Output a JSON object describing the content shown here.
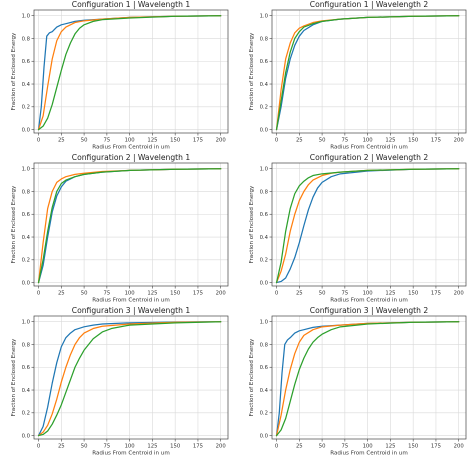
{
  "colors": {
    "blue": "#1f77b4",
    "orange": "#ff7f0e",
    "green": "#2ca02c",
    "grid": "#d9d9d9"
  },
  "chart_data": [
    {
      "type": "line",
      "title": "Configuration 1 | Wavelength 1",
      "xlabel": "Radius From Centroid in um",
      "ylabel": "Fraction of Enclosed Energy",
      "xlim": [
        -5,
        208
      ],
      "ylim": [
        -0.03,
        1.05
      ],
      "xticks": [
        0,
        25,
        50,
        75,
        100,
        125,
        150,
        175,
        200
      ],
      "yticks": [
        0.0,
        0.2,
        0.4,
        0.6,
        0.8,
        1.0
      ],
      "grid": true,
      "series": [
        {
          "color": "#1f77b4",
          "x": [
            0,
            3,
            6,
            9,
            12,
            15,
            20,
            25,
            30,
            40,
            50,
            70,
            100,
            150,
            200
          ],
          "y": [
            0.0,
            0.2,
            0.55,
            0.82,
            0.85,
            0.86,
            0.9,
            0.92,
            0.93,
            0.95,
            0.96,
            0.97,
            0.985,
            0.995,
            1.0
          ]
        },
        {
          "color": "#ff7f0e",
          "x": [
            0,
            5,
            10,
            15,
            20,
            25,
            30,
            40,
            50,
            70,
            100,
            150,
            200
          ],
          "y": [
            0.0,
            0.12,
            0.38,
            0.62,
            0.78,
            0.86,
            0.9,
            0.94,
            0.955,
            0.97,
            0.985,
            0.995,
            1.0
          ]
        },
        {
          "color": "#2ca02c",
          "x": [
            0,
            5,
            10,
            15,
            20,
            25,
            30,
            35,
            40,
            45,
            50,
            60,
            70,
            100,
            150,
            200
          ],
          "y": [
            0.0,
            0.03,
            0.1,
            0.22,
            0.37,
            0.52,
            0.66,
            0.76,
            0.84,
            0.89,
            0.92,
            0.95,
            0.965,
            0.98,
            0.995,
            1.0
          ]
        }
      ]
    },
    {
      "type": "line",
      "title": "Configuration 1 | Wavelength 2",
      "xlabel": "Radius From Centroid in um",
      "ylabel": "Fraction of Enclosed Energy",
      "xlim": [
        -5,
        208
      ],
      "ylim": [
        -0.03,
        1.05
      ],
      "xticks": [
        0,
        25,
        50,
        75,
        100,
        125,
        150,
        175,
        200
      ],
      "yticks": [
        0.0,
        0.2,
        0.4,
        0.6,
        0.8,
        1.0
      ],
      "grid": true,
      "series": [
        {
          "color": "#1f77b4",
          "x": [
            0,
            5,
            10,
            15,
            20,
            25,
            30,
            40,
            50,
            70,
            100,
            150,
            200
          ],
          "y": [
            0.0,
            0.2,
            0.45,
            0.62,
            0.74,
            0.82,
            0.87,
            0.92,
            0.95,
            0.97,
            0.985,
            0.995,
            1.0
          ]
        },
        {
          "color": "#ff7f0e",
          "x": [
            0,
            5,
            10,
            15,
            20,
            25,
            30,
            40,
            50,
            70,
            100,
            150,
            200
          ],
          "y": [
            0.0,
            0.35,
            0.62,
            0.76,
            0.85,
            0.89,
            0.91,
            0.94,
            0.955,
            0.97,
            0.985,
            0.995,
            1.0
          ]
        },
        {
          "color": "#2ca02c",
          "x": [
            0,
            5,
            10,
            15,
            20,
            25,
            30,
            40,
            50,
            70,
            100,
            150,
            200
          ],
          "y": [
            0.0,
            0.25,
            0.5,
            0.68,
            0.8,
            0.86,
            0.9,
            0.93,
            0.95,
            0.97,
            0.985,
            0.995,
            1.0
          ]
        }
      ]
    },
    {
      "type": "line",
      "title": "Configuration 2 | Wavelength 1",
      "xlabel": "Radius From Centroid in um",
      "ylabel": "Fraction of Enclosed Energy",
      "xlim": [
        -5,
        208
      ],
      "ylim": [
        -0.03,
        1.05
      ],
      "xticks": [
        0,
        25,
        50,
        75,
        100,
        125,
        150,
        175,
        200
      ],
      "yticks": [
        0.0,
        0.2,
        0.4,
        0.6,
        0.8,
        1.0
      ],
      "grid": true,
      "series": [
        {
          "color": "#1f77b4",
          "x": [
            0,
            5,
            10,
            15,
            20,
            25,
            30,
            40,
            50,
            70,
            100,
            150,
            200
          ],
          "y": [
            0.0,
            0.15,
            0.4,
            0.62,
            0.76,
            0.84,
            0.89,
            0.93,
            0.95,
            0.97,
            0.985,
            0.995,
            1.0
          ]
        },
        {
          "color": "#ff7f0e",
          "x": [
            0,
            5,
            10,
            15,
            20,
            25,
            30,
            40,
            50,
            70,
            100,
            150,
            200
          ],
          "y": [
            0.0,
            0.35,
            0.65,
            0.8,
            0.88,
            0.91,
            0.93,
            0.95,
            0.96,
            0.975,
            0.985,
            0.995,
            1.0
          ]
        },
        {
          "color": "#2ca02c",
          "x": [
            0,
            5,
            10,
            15,
            20,
            25,
            30,
            40,
            50,
            70,
            100,
            150,
            200
          ],
          "y": [
            0.0,
            0.2,
            0.45,
            0.66,
            0.8,
            0.87,
            0.9,
            0.93,
            0.95,
            0.97,
            0.985,
            0.995,
            1.0
          ]
        }
      ]
    },
    {
      "type": "line",
      "title": "Configuration 2 | Wavelength 2",
      "xlabel": "Radius From Centroid in um",
      "ylabel": "Fraction of Enclosed Energy",
      "xlim": [
        -5,
        208
      ],
      "ylim": [
        -0.03,
        1.05
      ],
      "xticks": [
        0,
        25,
        50,
        75,
        100,
        125,
        150,
        175,
        200
      ],
      "yticks": [
        0.0,
        0.2,
        0.4,
        0.6,
        0.8,
        1.0
      ],
      "grid": true,
      "series": [
        {
          "color": "#1f77b4",
          "x": [
            0,
            5,
            10,
            15,
            20,
            25,
            30,
            35,
            40,
            45,
            50,
            60,
            70,
            100,
            150,
            200
          ],
          "y": [
            0.0,
            0.01,
            0.04,
            0.12,
            0.22,
            0.35,
            0.5,
            0.64,
            0.75,
            0.83,
            0.88,
            0.93,
            0.955,
            0.98,
            0.995,
            1.0
          ]
        },
        {
          "color": "#ff7f0e",
          "x": [
            0,
            5,
            10,
            15,
            20,
            25,
            30,
            35,
            40,
            50,
            60,
            70,
            100,
            150,
            200
          ],
          "y": [
            0.0,
            0.1,
            0.25,
            0.45,
            0.6,
            0.72,
            0.8,
            0.86,
            0.9,
            0.94,
            0.96,
            0.97,
            0.985,
            0.995,
            1.0
          ]
        },
        {
          "color": "#2ca02c",
          "x": [
            0,
            5,
            10,
            15,
            20,
            25,
            30,
            35,
            40,
            50,
            70,
            100,
            150,
            200
          ],
          "y": [
            0.0,
            0.18,
            0.45,
            0.65,
            0.78,
            0.85,
            0.89,
            0.92,
            0.94,
            0.955,
            0.97,
            0.985,
            0.995,
            1.0
          ]
        }
      ]
    },
    {
      "type": "line",
      "title": "Configuration 3 | Wavelength 1",
      "xlabel": "Radius From Centroid in um",
      "ylabel": "Fraction of Enclosed Energy",
      "xlim": [
        -5,
        208
      ],
      "ylim": [
        -0.03,
        1.05
      ],
      "xticks": [
        0,
        25,
        50,
        75,
        100,
        125,
        150,
        175,
        200
      ],
      "yticks": [
        0.0,
        0.2,
        0.4,
        0.6,
        0.8,
        1.0
      ],
      "grid": true,
      "series": [
        {
          "color": "#1f77b4",
          "x": [
            0,
            5,
            10,
            15,
            20,
            25,
            30,
            35,
            40,
            50,
            60,
            70,
            100,
            150,
            200
          ],
          "y": [
            0.0,
            0.08,
            0.25,
            0.46,
            0.64,
            0.78,
            0.86,
            0.9,
            0.93,
            0.955,
            0.97,
            0.98,
            0.99,
            0.997,
            1.0
          ]
        },
        {
          "color": "#ff7f0e",
          "x": [
            0,
            5,
            10,
            15,
            20,
            25,
            30,
            35,
            40,
            45,
            50,
            60,
            70,
            100,
            150,
            200
          ],
          "y": [
            0.0,
            0.03,
            0.09,
            0.19,
            0.32,
            0.47,
            0.6,
            0.71,
            0.8,
            0.86,
            0.9,
            0.94,
            0.96,
            0.98,
            0.995,
            1.0
          ]
        },
        {
          "color": "#2ca02c",
          "x": [
            0,
            5,
            10,
            15,
            20,
            25,
            30,
            35,
            40,
            45,
            50,
            60,
            70,
            80,
            100,
            150,
            200
          ],
          "y": [
            0.0,
            0.01,
            0.04,
            0.1,
            0.18,
            0.27,
            0.38,
            0.49,
            0.6,
            0.68,
            0.75,
            0.85,
            0.91,
            0.94,
            0.97,
            0.99,
            1.0
          ]
        }
      ]
    },
    {
      "type": "line",
      "title": "Configuration 3 | Wavelength 2",
      "xlabel": "Radius From Centroid in um",
      "ylabel": "Fraction of Enclosed Energy",
      "xlim": [
        -5,
        208
      ],
      "ylim": [
        -0.03,
        1.05
      ],
      "xticks": [
        0,
        25,
        50,
        75,
        100,
        125,
        150,
        175,
        200
      ],
      "yticks": [
        0.0,
        0.2,
        0.4,
        0.6,
        0.8,
        1.0
      ],
      "grid": true,
      "series": [
        {
          "color": "#1f77b4",
          "x": [
            0,
            3,
            6,
            9,
            12,
            15,
            20,
            25,
            30,
            40,
            50,
            70,
            100,
            150,
            200
          ],
          "y": [
            0.0,
            0.2,
            0.55,
            0.8,
            0.84,
            0.86,
            0.9,
            0.92,
            0.93,
            0.95,
            0.96,
            0.97,
            0.985,
            0.995,
            1.0
          ]
        },
        {
          "color": "#ff7f0e",
          "x": [
            0,
            5,
            10,
            15,
            20,
            25,
            30,
            40,
            50,
            70,
            100,
            150,
            200
          ],
          "y": [
            0.0,
            0.18,
            0.4,
            0.58,
            0.72,
            0.82,
            0.88,
            0.93,
            0.955,
            0.97,
            0.985,
            0.995,
            1.0
          ]
        },
        {
          "color": "#2ca02c",
          "x": [
            0,
            5,
            10,
            15,
            20,
            25,
            30,
            35,
            40,
            45,
            50,
            60,
            70,
            100,
            150,
            200
          ],
          "y": [
            0.0,
            0.05,
            0.15,
            0.3,
            0.45,
            0.58,
            0.68,
            0.76,
            0.82,
            0.86,
            0.89,
            0.93,
            0.955,
            0.98,
            0.995,
            1.0
          ]
        }
      ]
    }
  ]
}
